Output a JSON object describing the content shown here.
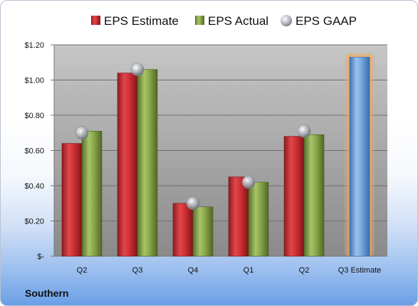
{
  "company": "Southern",
  "chart_data": {
    "type": "bar",
    "categories": [
      "Q2",
      "Q3",
      "Q4",
      "Q1",
      "Q2",
      "Q3 Estimate"
    ],
    "series": [
      {
        "name": "EPS Estimate",
        "values": [
          0.64,
          1.04,
          0.3,
          0.45,
          0.68,
          null
        ]
      },
      {
        "name": "EPS Actual",
        "values": [
          0.71,
          1.06,
          0.28,
          0.42,
          0.69,
          null
        ]
      },
      {
        "name": "EPS GAAP",
        "values": [
          0.7,
          1.06,
          0.3,
          0.42,
          0.71,
          null
        ]
      }
    ],
    "forecast": {
      "category": "Q3 Estimate",
      "value": 1.13
    },
    "ylim": [
      0,
      1.2
    ],
    "yticks": [
      0,
      0.2,
      0.4,
      0.6,
      0.8,
      1.0,
      1.2
    ],
    "ytick_labels": [
      "$-",
      "$0.20",
      "$0.40",
      "$0.60",
      "$0.80",
      "$1.00",
      "$1.20"
    ],
    "legend": "top",
    "grid": true,
    "colors": {
      "estimate": "#c0282d",
      "actual": "#7a9a3a",
      "gaap": "#a8adb5",
      "forecast": "#6a9fd8",
      "forecast_glow": "#f3a95a"
    }
  }
}
